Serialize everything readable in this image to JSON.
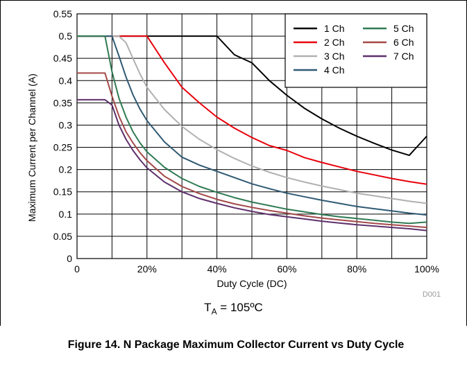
{
  "chart_data": {
    "type": "line",
    "xlabel": "Duty Cycle (DC)",
    "ylabel": "Maximum Current per Channel (A)",
    "x_ticks": [
      "0",
      "20%",
      "40%",
      "60%",
      "80%",
      "100%"
    ],
    "y_ticks": [
      "0",
      "0.05",
      "0.1",
      "0.15",
      "0.2",
      "0.25",
      "0.3",
      "0.35",
      "0.4",
      "0.45",
      "0.5",
      "0.55"
    ],
    "xlim": [
      0,
      100
    ],
    "ylim": [
      0,
      0.55
    ],
    "grid": true,
    "legend_position": "top-right",
    "code": "D001",
    "series": [
      {
        "name": "1 Ch",
        "color": "#000000",
        "x": [
          0,
          10,
          20,
          30,
          40,
          45,
          50,
          55,
          60,
          65,
          70,
          75,
          80,
          85,
          90,
          95,
          100
        ],
        "values": [
          0.5,
          0.5,
          0.5,
          0.5,
          0.5,
          0.458,
          0.44,
          0.4,
          0.367,
          0.338,
          0.314,
          0.293,
          0.275,
          0.259,
          0.244,
          0.232,
          0.275
        ]
      },
      {
        "name": "2 Ch",
        "color": "#e8000b",
        "x": [
          0,
          10,
          20,
          25,
          30,
          35,
          40,
          45,
          50,
          55,
          60,
          65,
          70,
          75,
          80,
          85,
          90,
          95,
          100
        ],
        "values": [
          0.5,
          0.5,
          0.5,
          0.44,
          0.385,
          0.35,
          0.318,
          0.293,
          0.272,
          0.254,
          0.243,
          0.227,
          0.216,
          0.206,
          0.196,
          0.188,
          0.18,
          0.173,
          0.167
        ]
      },
      {
        "name": "3 Ch",
        "color": "#b0b0b0",
        "x": [
          0,
          10,
          12,
          14,
          16,
          18,
          20,
          25,
          30,
          35,
          40,
          45,
          50,
          55,
          60,
          65,
          70,
          75,
          80,
          85,
          90,
          95,
          100
        ],
        "values": [
          0.5,
          0.5,
          0.5,
          0.485,
          0.45,
          0.415,
          0.385,
          0.335,
          0.297,
          0.268,
          0.245,
          0.225,
          0.208,
          0.194,
          0.182,
          0.172,
          0.163,
          0.155,
          0.147,
          0.141,
          0.135,
          0.129,
          0.124
        ]
      },
      {
        "name": "4 Ch",
        "color": "#2f5973",
        "x": [
          0,
          10,
          12,
          14,
          16,
          18,
          20,
          25,
          30,
          35,
          40,
          45,
          50,
          55,
          60,
          65,
          70,
          75,
          80,
          85,
          90,
          95,
          100
        ],
        "values": [
          0.5,
          0.5,
          0.455,
          0.408,
          0.368,
          0.336,
          0.31,
          0.262,
          0.228,
          0.21,
          0.196,
          0.182,
          0.168,
          0.157,
          0.147,
          0.139,
          0.131,
          0.124,
          0.117,
          0.112,
          0.107,
          0.102,
          0.098
        ]
      },
      {
        "name": "5 Ch",
        "color": "#2f7a52",
        "x": [
          0,
          8,
          10,
          12,
          14,
          16,
          18,
          20,
          25,
          30,
          35,
          40,
          45,
          50,
          55,
          60,
          65,
          70,
          75,
          80,
          85,
          90,
          95,
          100
        ],
        "values": [
          0.5,
          0.5,
          0.42,
          0.36,
          0.318,
          0.285,
          0.26,
          0.24,
          0.205,
          0.18,
          0.162,
          0.149,
          0.137,
          0.127,
          0.119,
          0.111,
          0.105,
          0.099,
          0.094,
          0.09,
          0.086,
          0.082,
          0.079,
          0.082
        ]
      },
      {
        "name": "6 Ch",
        "color": "#a34848",
        "x": [
          0,
          8,
          10,
          12,
          14,
          16,
          18,
          20,
          25,
          30,
          35,
          40,
          45,
          50,
          55,
          60,
          65,
          70,
          75,
          80,
          85,
          90,
          95,
          100
        ],
        "values": [
          0.417,
          0.417,
          0.365,
          0.32,
          0.285,
          0.26,
          0.238,
          0.22,
          0.185,
          0.162,
          0.146,
          0.133,
          0.123,
          0.115,
          0.108,
          0.102,
          0.096,
          0.091,
          0.087,
          0.083,
          0.079,
          0.076,
          0.073,
          0.07
        ]
      },
      {
        "name": "7 Ch",
        "color": "#5e2f6b",
        "x": [
          0,
          8,
          10,
          12,
          14,
          16,
          18,
          20,
          25,
          30,
          35,
          40,
          45,
          50,
          55,
          60,
          65,
          70,
          75,
          80,
          85,
          90,
          95,
          100
        ],
        "values": [
          0.357,
          0.357,
          0.345,
          0.3,
          0.268,
          0.243,
          0.222,
          0.204,
          0.172,
          0.15,
          0.135,
          0.124,
          0.114,
          0.106,
          0.099,
          0.094,
          0.089,
          0.084,
          0.08,
          0.076,
          0.073,
          0.07,
          0.067,
          0.063
        ]
      }
    ]
  },
  "condition": {
    "prefix": "T",
    "subscript": "A",
    "rest": " = 105ºC"
  },
  "caption": "Figure 14. N Package Maximum Collector Current vs Duty Cycle"
}
